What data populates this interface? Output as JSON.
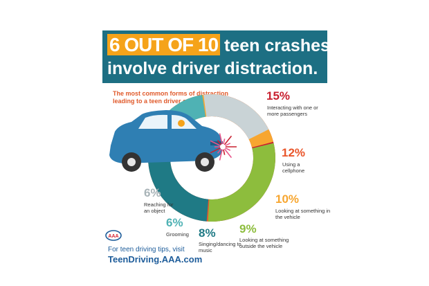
{
  "header": {
    "number_text": "6 OUT OF 10",
    "line1_rest": "teen crashes",
    "line2": "involve driver distraction."
  },
  "intro_text": "The most common forms of distraction leading to a teen driver crash include:",
  "chart_data": {
    "type": "pie",
    "style": "partial donut ring",
    "series": [
      {
        "percent": "15%",
        "value": 15,
        "label": "Interacting with one or more passengers",
        "color": "#c8202f"
      },
      {
        "percent": "12%",
        "value": 12,
        "label": "Using a cellphone",
        "color": "#e9562b"
      },
      {
        "percent": "10%",
        "value": 10,
        "label": "Looking at something in the vehicle",
        "color": "#f7a630"
      },
      {
        "percent": "9%",
        "value": 9,
        "label": "Looking at something outside the vehicle",
        "color": "#8dbd3d"
      },
      {
        "percent": "8%",
        "value": 8,
        "label": "Singing/dancing to music",
        "color": "#1f7a85"
      },
      {
        "percent": "6%",
        "value": 6,
        "label": "Grooming",
        "color": "#4fb2b4"
      },
      {
        "percent": "6%",
        "value": 6,
        "label": "Reaching for an object",
        "color": "#c9d3d6"
      }
    ]
  },
  "footer": {
    "line1": "For teen driving tips, visit",
    "line2": "TeenDriving.AAA.com"
  },
  "logo": {
    "text": "AAA"
  }
}
